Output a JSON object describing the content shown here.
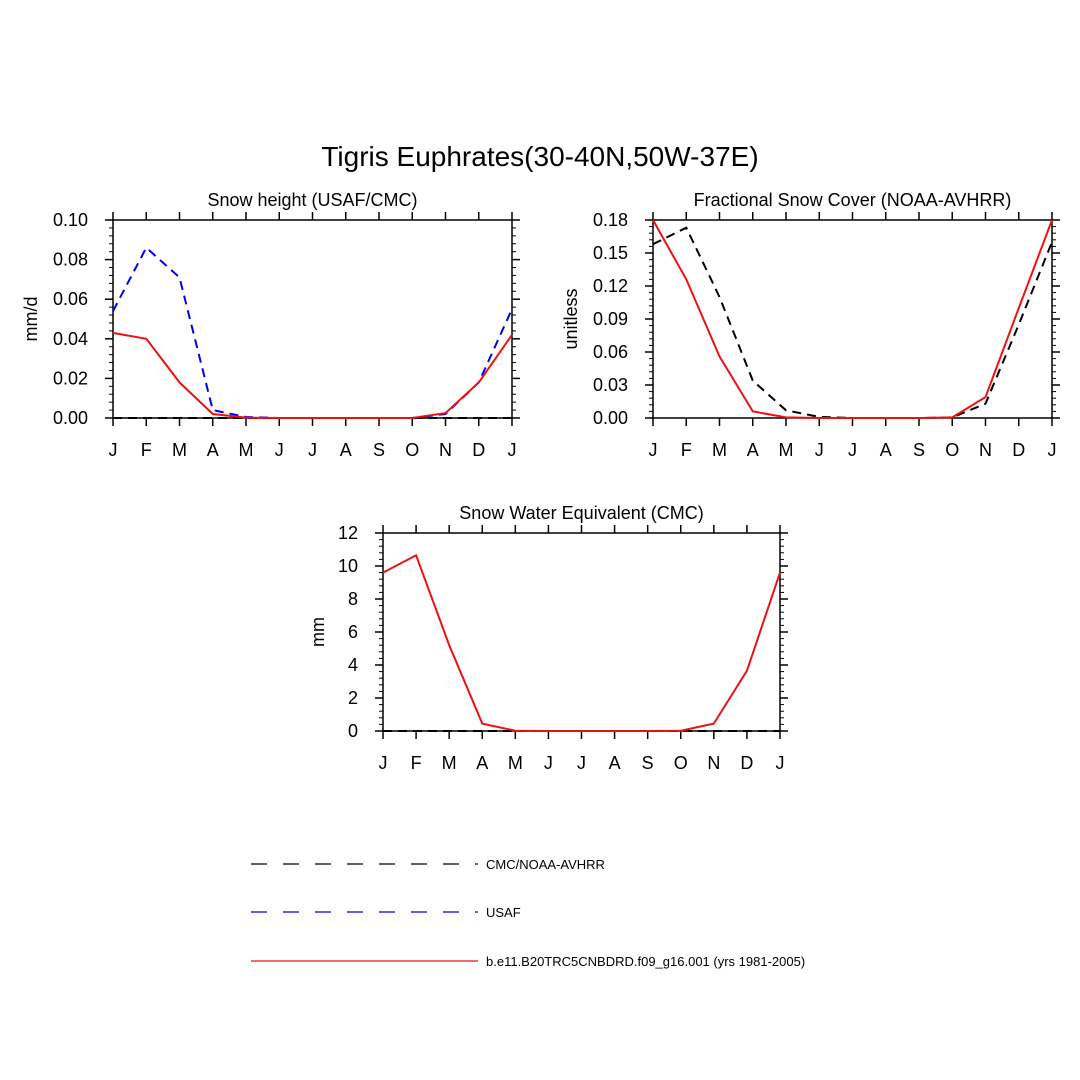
{
  "figure_title": "Tigris Euphrates(30-40N,50W-37E)",
  "colors": {
    "obs": "#000000",
    "usaf": "#0000ee",
    "model": "#ee1111"
  },
  "legend": [
    {
      "label": "CMC/NOAA-AVHRR",
      "color": "#000000",
      "dash": "dashed"
    },
    {
      "label": "USAF",
      "color": "#0000ee",
      "dash": "dashed"
    },
    {
      "label": "b.e11.B20TRC5CNBDRD.f09_g16.001 (yrs 1981-2005)",
      "color": "#ee1111",
      "dash": "solid"
    }
  ],
  "chart_data": [
    {
      "type": "line",
      "title": "Snow height (USAF/CMC)",
      "ylabel": "mm/d",
      "xlabel": "",
      "categories": [
        "J",
        "F",
        "M",
        "A",
        "M",
        "J",
        "J",
        "A",
        "S",
        "O",
        "N",
        "D",
        "J"
      ],
      "ylim": [
        0,
        0.1
      ],
      "yticks": [
        "0.00",
        "0.02",
        "0.04",
        "0.06",
        "0.08",
        "0.10"
      ],
      "series": [
        {
          "name": "CMC/NOAA-AVHRR",
          "style": "dashed",
          "color": "#000000",
          "values": [
            0,
            0,
            0,
            0,
            0,
            0,
            0,
            0,
            0,
            0,
            0,
            0,
            0
          ]
        },
        {
          "name": "USAF",
          "style": "dashed",
          "color": "#0000ee",
          "values": [
            0.054,
            0.086,
            0.071,
            0.004,
            0.0005,
            0,
            0,
            0,
            0,
            0,
            0.002,
            0.018,
            0.055
          ]
        },
        {
          "name": "b.e11.B20TRC5CNBDRD.f09_g16.001 (yrs 1981-2005)",
          "style": "solid",
          "color": "#ee1111",
          "values": [
            0.043,
            0.04,
            0.018,
            0.002,
            0.0002,
            0,
            0,
            0,
            0,
            0,
            0.0025,
            0.018,
            0.042
          ]
        }
      ]
    },
    {
      "type": "line",
      "title": "Fractional Snow Cover (NOAA-AVHRR)",
      "ylabel": "unitless",
      "xlabel": "",
      "categories": [
        "J",
        "F",
        "M",
        "A",
        "M",
        "J",
        "J",
        "A",
        "S",
        "O",
        "N",
        "D",
        "J"
      ],
      "ylim": [
        0,
        0.18
      ],
      "yticks": [
        "0.00",
        "0.03",
        "0.06",
        "0.09",
        "0.12",
        "0.15",
        "0.18"
      ],
      "series": [
        {
          "name": "CMC/NOAA-AVHRR",
          "style": "dashed",
          "color": "#000000",
          "values": [
            0.158,
            0.173,
            0.11,
            0.034,
            0.007,
            0.001,
            0,
            0,
            0,
            0.0005,
            0.013,
            0.085,
            0.16
          ]
        },
        {
          "name": "b.e11.B20TRC5CNBDRD.f09_g16.001 (yrs 1981-2005)",
          "style": "solid",
          "color": "#ee1111",
          "values": [
            0.18,
            0.126,
            0.056,
            0.006,
            0.0005,
            0,
            0,
            0,
            0,
            0.0005,
            0.019,
            0.1,
            0.18
          ]
        }
      ]
    },
    {
      "type": "line",
      "title": "Snow Water Equivalent (CMC)",
      "ylabel": "mm",
      "xlabel": "",
      "categories": [
        "J",
        "F",
        "M",
        "A",
        "M",
        "J",
        "J",
        "A",
        "S",
        "O",
        "N",
        "D",
        "J"
      ],
      "ylim": [
        0,
        12
      ],
      "yticks": [
        "0",
        "2",
        "4",
        "6",
        "8",
        "10",
        "12"
      ],
      "series": [
        {
          "name": "CMC/NOAA-AVHRR",
          "style": "dashed",
          "color": "#000000",
          "values": [
            0,
            0,
            0,
            0,
            0,
            0,
            0,
            0,
            0,
            0,
            0,
            0,
            0
          ]
        },
        {
          "name": "b.e11.B20TRC5CNBDRD.f09_g16.001 (yrs 1981-2005)",
          "style": "solid",
          "color": "#ee1111",
          "values": [
            9.6,
            10.65,
            5.2,
            0.45,
            0.02,
            0,
            0,
            0,
            0,
            0.02,
            0.45,
            3.65,
            9.6
          ]
        }
      ]
    }
  ]
}
